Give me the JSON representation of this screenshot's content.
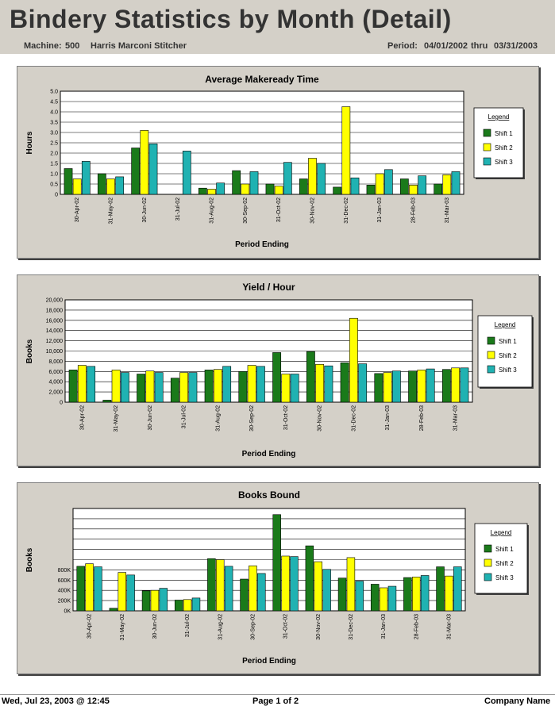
{
  "header": {
    "title": "Bindery Statistics by Month (Detail)",
    "machine_label": "Machine:",
    "machine_number": "500",
    "machine_name": "Harris Marconi Stitcher",
    "period_label": "Period:",
    "period_start": "04/01/2002",
    "period_thru": "thru",
    "period_end": "03/31/2003"
  },
  "footer": {
    "printed": "Wed, Jul 23, 2003 @ 12:45",
    "page": "Page 1 of 2",
    "company": "Company Name"
  },
  "colors": {
    "shift1": "#1a7a1a",
    "shift2": "#ffff00",
    "shift3": "#20b2b2",
    "panel": "#d4d0c8"
  },
  "chart_data": [
    {
      "type": "bar",
      "title": "Average Makeready Time",
      "xlabel": "Period Ending",
      "ylabel": "Hours",
      "ylim": [
        0,
        5
      ],
      "yticks": [
        "0",
        "0.5",
        "1.0",
        "1.5",
        "2.0",
        "2.5",
        "3.0",
        "3.5",
        "4.0",
        "4.5",
        "5.0"
      ],
      "categories": [
        "30-Apr-02",
        "31-May-02",
        "30-Jun-02",
        "31-Jul-02",
        "31-Aug-02",
        "30-Sep-02",
        "31-Oct-02",
        "30-Nov-02",
        "31-Dec-02",
        "31-Jan-03",
        "28-Feb-03",
        "31-Mar-03"
      ],
      "legend_title": "Legend",
      "legend_position": "right",
      "grid": true,
      "series": [
        {
          "name": "Shift 1",
          "values": [
            1.25,
            1.0,
            2.25,
            0,
            0.3,
            1.15,
            0.5,
            0.75,
            0.35,
            0.45,
            0.75,
            0.5
          ]
        },
        {
          "name": "Shift 2",
          "values": [
            0.75,
            0.75,
            3.1,
            0,
            0.25,
            0.5,
            0.4,
            1.75,
            4.25,
            1.0,
            0.45,
            0.95
          ]
        },
        {
          "name": "Shift 3",
          "values": [
            1.6,
            0.85,
            2.45,
            2.1,
            0.55,
            1.1,
            1.55,
            1.5,
            0.8,
            1.2,
            0.9,
            1.1
          ]
        }
      ]
    },
    {
      "type": "bar",
      "title": "Yield / Hour",
      "xlabel": "Period Ending",
      "ylabel": "Books",
      "ylim": [
        0,
        20000
      ],
      "yticks": [
        "0",
        "2,000",
        "4,000",
        "6,000",
        "8,000",
        "10,000",
        "12,000",
        "14,000",
        "16,000",
        "18,000",
        "20,000"
      ],
      "categories": [
        "30-Apr-02",
        "31-May-02",
        "30-Jun-02",
        "31-Jul-02",
        "31-Aug-02",
        "30-Sep-02",
        "31-Oct-02",
        "30-Nov-02",
        "31-Dec-02",
        "31-Jan-03",
        "28-Feb-03",
        "31-Mar-03"
      ],
      "legend_title": "Legend",
      "legend_position": "right",
      "grid": true,
      "series": [
        {
          "name": "Shift 1",
          "values": [
            6300,
            400,
            5500,
            4700,
            6300,
            6000,
            9700,
            9900,
            7700,
            5600,
            6100,
            6400
          ]
        },
        {
          "name": "Shift 2",
          "values": [
            7200,
            6300,
            6100,
            5800,
            6400,
            7200,
            5500,
            7400,
            16400,
            5800,
            6300,
            6700
          ]
        },
        {
          "name": "Shift 3",
          "values": [
            7000,
            5800,
            5800,
            5800,
            7000,
            7000,
            5500,
            7100,
            7500,
            6100,
            6500,
            6700
          ]
        }
      ]
    },
    {
      "type": "bar",
      "title": "Books Bound",
      "xlabel": "Period Ending",
      "ylabel": "Books",
      "ylim": [
        0,
        2000000
      ],
      "yticks": [
        "0K",
        "200K",
        "400K",
        "600K",
        "800K",
        "",
        "",
        "",
        "",
        "",
        ""
      ],
      "categories": [
        "30-Apr-02",
        "31-May-02",
        "30-Jun-02",
        "31-Jul-02",
        "31-Aug-02",
        "30-Sep-02",
        "31-Oct-02",
        "30-Nov-02",
        "31-Dec-02",
        "31-Jan-03",
        "28-Feb-03",
        "31-Mar-03"
      ],
      "legend_title": "Legend",
      "legend_position": "right",
      "grid": true,
      "series": [
        {
          "name": "Shift 1",
          "values": [
            870000,
            50000,
            390000,
            210000,
            1020000,
            620000,
            1880000,
            1270000,
            640000,
            520000,
            650000,
            860000
          ]
        },
        {
          "name": "Shift 2",
          "values": [
            920000,
            750000,
            400000,
            220000,
            1000000,
            880000,
            1070000,
            960000,
            1040000,
            450000,
            660000,
            680000
          ]
        },
        {
          "name": "Shift 3",
          "values": [
            860000,
            700000,
            440000,
            250000,
            870000,
            730000,
            1060000,
            810000,
            580000,
            480000,
            690000,
            860000
          ]
        }
      ]
    }
  ]
}
